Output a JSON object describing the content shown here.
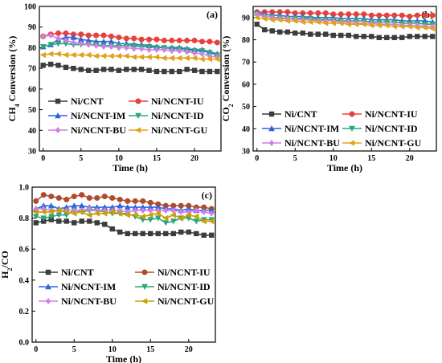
{
  "chart_data": [
    {
      "type": "line",
      "panel_label": "(a)",
      "xlabel": "Time (h)",
      "ylabel_main": "CH",
      "ylabel_sub": "4",
      "ylabel_rest": " Conversion (%)",
      "xlim": [
        -0.5,
        23.5
      ],
      "ylim": [
        30,
        100
      ],
      "xticks": [
        0,
        5,
        10,
        15,
        20
      ],
      "yticks": [
        30,
        40,
        50,
        60,
        70,
        80,
        90,
        100
      ],
      "x": [
        0,
        1,
        2,
        3,
        4,
        5,
        6,
        7,
        8,
        9,
        10,
        11,
        12,
        13,
        14,
        15,
        16,
        17,
        18,
        19,
        20,
        21,
        22,
        23
      ],
      "series": [
        {
          "name": "Ni/CNT",
          "color": "#3c3c3c",
          "marker": "square",
          "values": [
            71.5,
            72,
            71.5,
            70.5,
            70,
            69.5,
            69,
            69,
            69.5,
            69.5,
            69,
            69.5,
            69.5,
            69.5,
            69,
            68.5,
            68.5,
            68.5,
            68.5,
            69.5,
            69,
            68.5,
            68.5,
            68.5
          ]
        },
        {
          "name": "Ni/NCNT-IU",
          "color": "#e8413b",
          "marker": "circle",
          "values": [
            85.5,
            86.5,
            87,
            87,
            86.5,
            86.5,
            86,
            86,
            86,
            85.5,
            85,
            84.5,
            84.5,
            84,
            84,
            84,
            83.5,
            83.5,
            83.5,
            83.5,
            83.5,
            83,
            83,
            82.5
          ]
        },
        {
          "name": "Ni/NCNT-IM",
          "color": "#2c63d8",
          "marker": "triangle",
          "values": [
            80.5,
            81.5,
            84,
            85,
            85,
            84,
            83.5,
            83,
            83,
            83,
            82,
            82,
            81.5,
            81.5,
            81,
            80.5,
            80,
            80,
            80,
            79.5,
            79,
            79,
            78,
            77
          ]
        },
        {
          "name": "Ni/NCNT-ID",
          "color": "#2aa57c",
          "marker": "tri-down",
          "values": [
            80.5,
            81.5,
            82,
            82,
            81.5,
            81.5,
            81.5,
            81.5,
            81,
            81,
            81,
            81,
            81,
            80.5,
            80.5,
            80,
            80,
            79.5,
            79.5,
            79,
            78.5,
            78.5,
            77.5,
            76.5
          ]
        },
        {
          "name": "Ni/NCNT-BU",
          "color": "#cf7fe6",
          "marker": "diamond",
          "values": [
            85.5,
            86,
            84.5,
            83.5,
            82.5,
            82,
            81.5,
            81,
            80.5,
            80.5,
            80,
            80,
            79.5,
            79.5,
            79,
            79,
            79,
            78.5,
            78.5,
            78,
            77.5,
            77,
            76,
            75.5
          ]
        },
        {
          "name": "Ni/NCNT-GU",
          "color": "#e0a21a",
          "marker": "left-tri",
          "values": [
            76.5,
            77,
            77,
            76.5,
            76.5,
            76.5,
            76.5,
            76,
            76,
            76,
            76,
            76,
            75.5,
            75.5,
            75.5,
            75.5,
            75,
            75,
            75,
            75,
            75,
            74.5,
            74.5,
            74.5
          ]
        }
      ]
    },
    {
      "type": "line",
      "panel_label": "(b)",
      "xlabel": "Time (h)",
      "ylabel_main": "CO",
      "ylabel_sub": "2",
      "ylabel_rest": " Conversion (%)",
      "xlim": [
        -0.5,
        23.5
      ],
      "ylim": [
        30,
        95
      ],
      "xticks": [
        0,
        5,
        10,
        15,
        20
      ],
      "yticks": [
        30,
        40,
        50,
        60,
        70,
        80,
        90
      ],
      "x": [
        0,
        1,
        2,
        3,
        4,
        5,
        6,
        7,
        8,
        9,
        10,
        11,
        12,
        13,
        14,
        15,
        16,
        17,
        18,
        19,
        20,
        21,
        22,
        23
      ],
      "series": [
        {
          "name": "Ni/CNT",
          "color": "#3c3c3c",
          "marker": "square",
          "values": [
            87,
            84.5,
            84,
            83.5,
            83.5,
            83,
            83,
            82.5,
            82.5,
            82.5,
            82,
            82,
            82,
            81.5,
            81.5,
            81.5,
            81,
            81,
            81,
            81,
            81.5,
            81.5,
            81.5,
            81.5
          ]
        },
        {
          "name": "Ni/NCNT-IU",
          "color": "#e8413b",
          "marker": "circle",
          "values": [
            92.5,
            92.5,
            92.5,
            92.5,
            92.5,
            92,
            92,
            92,
            92,
            92,
            91.5,
            91.5,
            91.5,
            91.5,
            91.5,
            91,
            91,
            91,
            91,
            91,
            90.5,
            91,
            91,
            91
          ]
        },
        {
          "name": "Ni/NCNT-IM",
          "color": "#2c63d8",
          "marker": "triangle",
          "values": [
            92,
            91.5,
            91,
            91,
            90.5,
            90.5,
            90.5,
            90,
            90,
            90,
            90,
            89.5,
            89.5,
            89.5,
            89.5,
            89,
            89,
            89,
            89,
            88.5,
            88.5,
            88.5,
            88.5,
            88
          ]
        },
        {
          "name": "Ni/NCNT-ID",
          "color": "#2aa57c",
          "marker": "tri-down",
          "values": [
            91.5,
            90.5,
            90,
            90,
            89.5,
            89.5,
            89.5,
            89.5,
            89,
            89,
            89,
            88.5,
            88.5,
            88.5,
            88.5,
            88,
            88,
            88,
            88,
            87.5,
            87.5,
            87.5,
            87,
            87
          ]
        },
        {
          "name": "Ni/NCNT-BU",
          "color": "#cf7fe6",
          "marker": "diamond",
          "values": [
            91.5,
            90.5,
            90,
            89.5,
            89.5,
            89,
            89,
            89,
            88.5,
            88.5,
            88.5,
            88,
            88,
            87.5,
            87.5,
            87.5,
            87,
            87,
            87,
            86.5,
            86.5,
            86.5,
            86,
            86
          ]
        },
        {
          "name": "Ni/NCNT-GU",
          "color": "#e0a21a",
          "marker": "left-tri",
          "values": [
            90,
            89.5,
            89,
            89,
            88.5,
            88.5,
            88,
            88,
            88,
            87.5,
            87.5,
            87.5,
            87,
            87,
            87,
            86.5,
            86.5,
            86.5,
            86,
            86,
            86,
            85.5,
            85.5,
            85
          ]
        }
      ]
    },
    {
      "type": "line",
      "panel_label": "(c)",
      "xlabel": "Time (h)",
      "ylabel_main": "H",
      "ylabel_sub": "2",
      "ylabel_rest": "/CO",
      "xlim": [
        -0.5,
        23.5
      ],
      "ylim": [
        0.0,
        1.0
      ],
      "xticks": [
        0,
        5,
        10,
        15,
        20
      ],
      "yticks": [
        0.0,
        0.2,
        0.4,
        0.6,
        0.8,
        1.0
      ],
      "ytick_labels": [
        "0.0",
        "0.2",
        "0.4",
        "0.6",
        "0.8",
        "1.0"
      ],
      "x": [
        0,
        1,
        2,
        3,
        4,
        5,
        6,
        7,
        8,
        9,
        10,
        11,
        12,
        13,
        14,
        15,
        16,
        17,
        18,
        19,
        20,
        21,
        22,
        23
      ],
      "series": [
        {
          "name": "Ni/CNT",
          "color": "#3c3c3c",
          "marker": "square",
          "values": [
            0.77,
            0.78,
            0.79,
            0.78,
            0.78,
            0.77,
            0.78,
            0.78,
            0.77,
            0.76,
            0.73,
            0.71,
            0.7,
            0.7,
            0.7,
            0.7,
            0.7,
            0.7,
            0.7,
            0.71,
            0.71,
            0.7,
            0.69,
            0.69
          ]
        },
        {
          "name": "Ni/NCNT-IU",
          "color": "#b04a2a",
          "marker": "circle",
          "values": [
            0.91,
            0.95,
            0.94,
            0.93,
            0.92,
            0.94,
            0.95,
            0.93,
            0.93,
            0.94,
            0.93,
            0.92,
            0.91,
            0.91,
            0.91,
            0.9,
            0.89,
            0.88,
            0.88,
            0.88,
            0.88,
            0.87,
            0.87,
            0.86
          ]
        },
        {
          "name": "Ni/NCNT-IM",
          "color": "#2c63d8",
          "marker": "triangle",
          "values": [
            0.86,
            0.88,
            0.88,
            0.86,
            0.87,
            0.88,
            0.88,
            0.87,
            0.87,
            0.87,
            0.87,
            0.88,
            0.87,
            0.87,
            0.87,
            0.87,
            0.87,
            0.86,
            0.86,
            0.85,
            0.86,
            0.85,
            0.85,
            0.85
          ]
        },
        {
          "name": "Ni/NCNT-ID",
          "color": "#2aa57c",
          "marker": "tri-down",
          "values": [
            0.81,
            0.8,
            0.81,
            0.82,
            0.82,
            0.85,
            0.84,
            0.85,
            0.85,
            0.84,
            0.83,
            0.83,
            0.83,
            0.81,
            0.79,
            0.79,
            0.8,
            0.77,
            0.78,
            0.8,
            0.8,
            0.78,
            0.79,
            0.79
          ]
        },
        {
          "name": "Ni/NCNT-BU",
          "color": "#cf7fe6",
          "marker": "diamond",
          "values": [
            0.86,
            0.86,
            0.85,
            0.85,
            0.85,
            0.85,
            0.85,
            0.86,
            0.85,
            0.85,
            0.85,
            0.85,
            0.84,
            0.85,
            0.85,
            0.85,
            0.85,
            0.85,
            0.85,
            0.84,
            0.84,
            0.85,
            0.84,
            0.83
          ]
        },
        {
          "name": "Ni/NCNT-GU",
          "color": "#c8a000",
          "marker": "left-tri",
          "values": [
            0.84,
            0.84,
            0.84,
            0.85,
            0.84,
            0.83,
            0.84,
            0.82,
            0.83,
            0.83,
            0.84,
            0.83,
            0.82,
            0.82,
            0.81,
            0.82,
            0.83,
            0.8,
            0.82,
            0.8,
            0.82,
            0.81,
            0.78,
            0.78
          ]
        }
      ]
    }
  ]
}
